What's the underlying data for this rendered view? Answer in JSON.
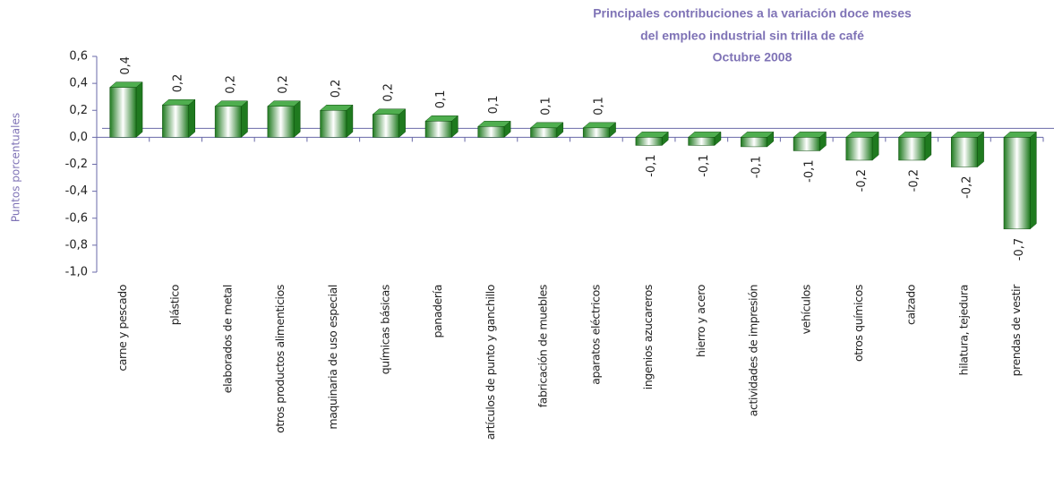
{
  "chart_data": {
    "type": "bar",
    "title": [
      "Principales contribuciones a la variación doce meses",
      "del empleo industrial sin trilla de café",
      "Octubre 2008"
    ],
    "y_label": "Puntos porcentuales",
    "categories": [
      "carne y pescado",
      "plástico",
      "elaborados de metal",
      "otros productos alimenticios",
      "maquinaria de uso especial",
      "químicas básicas",
      "panadería",
      "artículos de punto y ganchillo",
      "fabricación de muebles",
      "aparatos eléctricos",
      "ingenios azucareros",
      "hierro y acero",
      "actividades de impresión",
      "vehículos",
      "otros químicos",
      "calzado",
      "hilatura, tejedura",
      "prendas de vestir"
    ],
    "values": [
      0.37,
      0.24,
      0.23,
      0.23,
      0.2,
      0.17,
      0.12,
      0.08,
      0.07,
      0.07,
      -0.06,
      -0.06,
      -0.07,
      -0.1,
      -0.17,
      -0.17,
      -0.22,
      -0.68
    ],
    "value_labels": [
      "0,4",
      "0,2",
      "0,2",
      "0,2",
      "0,2",
      "0,2",
      "0,1",
      "0,1",
      "0,1",
      "0,1",
      "-0,1",
      "-0,1",
      "-0,1",
      "-0,1",
      "-0,2",
      "-0,2",
      "-0,2",
      "-0,7"
    ],
    "color": "#1f7a1f",
    "ylim": [
      -1.0,
      0.6
    ],
    "yticks": [
      {
        "value": 0.6,
        "label": "0,6"
      },
      {
        "value": 0.4,
        "label": "0,4"
      },
      {
        "value": 0.2,
        "label": "0,2"
      },
      {
        "value": 0.0,
        "label": "0,0"
      },
      {
        "value": -0.2,
        "label": "-0,2"
      },
      {
        "value": -0.4,
        "label": "-0,4"
      },
      {
        "value": -0.6,
        "label": "-0,6"
      },
      {
        "value": -0.8,
        "label": "-0,8"
      },
      {
        "value": -1.0,
        "label": "-1,0"
      }
    ],
    "grid": false
  }
}
